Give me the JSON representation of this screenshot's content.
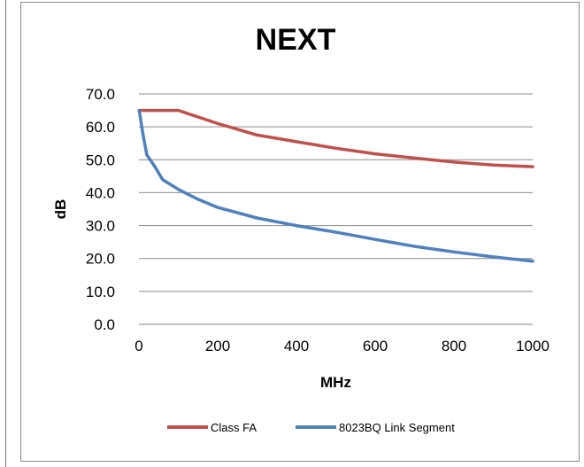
{
  "chart_data": {
    "type": "line",
    "title": "NEXT",
    "xlabel": "MHz",
    "ylabel": "dB",
    "xlim": [
      0,
      1000
    ],
    "ylim": [
      0,
      70
    ],
    "xticks": [
      "0",
      "200",
      "400",
      "600",
      "800",
      "1000"
    ],
    "yticks": [
      "0.0",
      "10.0",
      "20.0",
      "30.0",
      "40.0",
      "50.0",
      "60.0",
      "70.0"
    ],
    "grid": "horizontal",
    "legend_position": "bottom",
    "series": [
      {
        "name": "Class FA",
        "color": "#c0504d",
        "x": [
          1,
          100,
          200,
          300,
          400,
          500,
          600,
          700,
          800,
          900,
          1000
        ],
        "y": [
          65.0,
          65.0,
          61.0,
          57.5,
          55.5,
          53.5,
          51.8,
          50.5,
          49.3,
          48.4,
          47.9
        ]
      },
      {
        "name": "8023BQ Link Segment",
        "color": "#4f81bd",
        "x": [
          1,
          10,
          20,
          40,
          60,
          100,
          150,
          200,
          300,
          400,
          500,
          600,
          700,
          800,
          900,
          1000
        ],
        "y": [
          65.0,
          58.0,
          51.5,
          48.0,
          44.0,
          41.0,
          38.0,
          35.5,
          32.3,
          30.0,
          28.0,
          25.8,
          23.7,
          22.0,
          20.5,
          19.2
        ]
      }
    ]
  }
}
